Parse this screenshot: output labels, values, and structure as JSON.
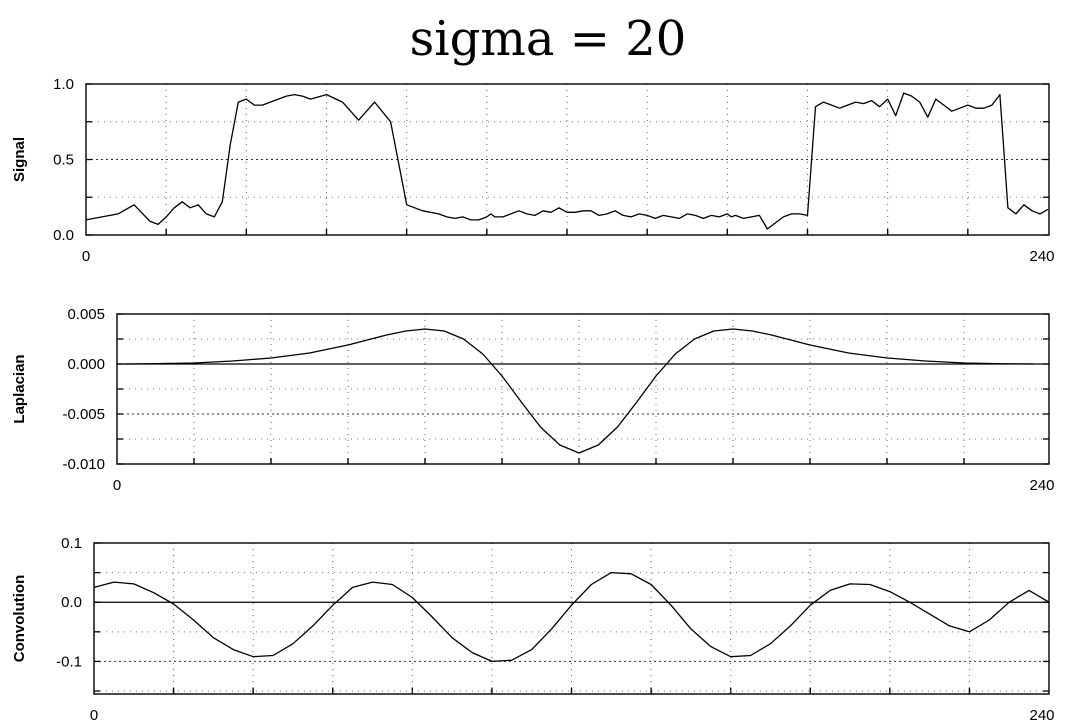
{
  "title": "sigma = 20",
  "chart_data": [
    {
      "type": "line",
      "ylabel": "Signal",
      "xlabel": "",
      "xlim": [
        0,
        240
      ],
      "ylim": [
        0,
        1
      ],
      "x_tick_labels": [
        "0",
        "240"
      ],
      "y_tick_labels": [
        "1.0",
        "0.5",
        "0.0"
      ],
      "y_ticks": [
        1.0,
        0.5,
        0.0
      ],
      "grid": true,
      "series": [
        {
          "x": [
            0,
            4,
            8,
            12,
            16,
            18,
            20,
            22,
            24,
            26,
            28,
            30,
            32,
            34,
            36,
            38,
            40,
            42,
            44,
            46,
            48,
            50,
            52,
            54,
            56,
            60,
            64,
            68,
            72,
            76,
            80,
            84,
            88,
            90,
            92,
            94,
            96,
            97,
            98,
            100,
            101,
            102,
            104,
            106,
            108,
            110,
            112,
            114,
            116,
            118,
            120,
            122,
            124,
            126,
            128,
            130,
            132,
            134,
            136,
            138,
            140,
            142,
            144,
            146,
            148,
            150,
            152,
            154,
            156,
            158,
            160,
            161,
            162,
            164,
            166,
            168,
            170,
            172,
            174,
            176,
            178,
            180,
            182,
            184,
            186,
            188,
            190,
            192,
            194,
            196,
            198,
            200,
            202,
            204,
            206,
            208,
            210,
            212,
            214,
            216,
            218,
            220,
            222,
            224,
            226,
            228,
            230,
            232,
            234,
            236,
            238,
            240
          ],
          "y": [
            0.1,
            0.12,
            0.14,
            0.2,
            0.09,
            0.07,
            0.12,
            0.18,
            0.22,
            0.18,
            0.2,
            0.14,
            0.12,
            0.22,
            0.6,
            0.88,
            0.9,
            0.86,
            0.86,
            0.88,
            0.9,
            0.92,
            0.93,
            0.92,
            0.9,
            0.93,
            0.88,
            0.76,
            0.88,
            0.75,
            0.2,
            0.16,
            0.14,
            0.12,
            0.11,
            0.12,
            0.1,
            0.1,
            0.1,
            0.12,
            0.14,
            0.12,
            0.12,
            0.14,
            0.16,
            0.14,
            0.13,
            0.16,
            0.15,
            0.18,
            0.15,
            0.15,
            0.16,
            0.16,
            0.13,
            0.14,
            0.16,
            0.13,
            0.12,
            0.14,
            0.13,
            0.11,
            0.13,
            0.12,
            0.11,
            0.14,
            0.13,
            0.11,
            0.13,
            0.12,
            0.14,
            0.12,
            0.13,
            0.11,
            0.12,
            0.13,
            0.04,
            0.08,
            0.12,
            0.14,
            0.14,
            0.13,
            0.85,
            0.88,
            0.86,
            0.84,
            0.86,
            0.88,
            0.87,
            0.89,
            0.85,
            0.9,
            0.79,
            0.94,
            0.92,
            0.88,
            0.78,
            0.9,
            0.86,
            0.82,
            0.84,
            0.86,
            0.84,
            0.84,
            0.86,
            0.93,
            0.18,
            0.14,
            0.2,
            0.16,
            0.14,
            0.17
          ]
        }
      ]
    },
    {
      "type": "line",
      "ylabel": "Laplacian",
      "xlabel": "",
      "xlim": [
        0,
        240
      ],
      "ylim": [
        -0.01,
        0.005
      ],
      "x_tick_labels": [
        "0",
        "240"
      ],
      "y_tick_labels": [
        "0.005",
        "0.000",
        "-0.005",
        "-0.010"
      ],
      "y_ticks": [
        0.005,
        0.0,
        -0.005,
        -0.01
      ],
      "grid": true,
      "series": [
        {
          "x": [
            2,
            10,
            20,
            30,
            40,
            50,
            60,
            70,
            75,
            80,
            85,
            90,
            95,
            100,
            105,
            110,
            115,
            120,
            125,
            130,
            135,
            140,
            145,
            150,
            155,
            160,
            165,
            170,
            175,
            180,
            190,
            200,
            210,
            220,
            230,
            238
          ],
          "y": [
            0.0,
            3e-05,
            0.0001,
            0.0003,
            0.0006,
            0.0011,
            0.0019,
            0.0029,
            0.0033,
            0.0035,
            0.0033,
            0.0025,
            0.001,
            -0.0012,
            -0.0038,
            -0.0063,
            -0.0081,
            -0.0089,
            -0.0081,
            -0.0063,
            -0.0038,
            -0.0012,
            0.001,
            0.0025,
            0.0033,
            0.0035,
            0.0033,
            0.0029,
            0.0024,
            0.0019,
            0.0011,
            0.0006,
            0.0003,
            0.0001,
            2e-05,
            0.0
          ]
        }
      ]
    },
    {
      "type": "line",
      "ylabel": "Convolution",
      "xlabel": "",
      "xlim": [
        0,
        240
      ],
      "ylim": [
        -0.155,
        0.1
      ],
      "x_tick_labels": [
        "0",
        "240"
      ],
      "y_tick_labels": [
        "0.1",
        "0.0",
        "-0.1"
      ],
      "y_ticks": [
        0.1,
        0.0,
        -0.1
      ],
      "grid": true,
      "series": [
        {
          "x": [
            0,
            5,
            10,
            15,
            20,
            25,
            30,
            35,
            40,
            45,
            50,
            55,
            60,
            65,
            70,
            75,
            80,
            85,
            90,
            95,
            100,
            105,
            110,
            115,
            120,
            125,
            130,
            135,
            140,
            145,
            150,
            155,
            160,
            165,
            170,
            175,
            180,
            185,
            190,
            195,
            200,
            205,
            210,
            215,
            220,
            225,
            230,
            235,
            240
          ],
          "y": [
            0.025,
            0.034,
            0.031,
            0.016,
            -0.003,
            -0.03,
            -0.06,
            -0.08,
            -0.092,
            -0.09,
            -0.07,
            -0.04,
            -0.005,
            0.025,
            0.034,
            0.03,
            0.008,
            -0.025,
            -0.06,
            -0.085,
            -0.1,
            -0.098,
            -0.08,
            -0.045,
            -0.005,
            0.03,
            0.05,
            0.048,
            0.03,
            -0.005,
            -0.045,
            -0.075,
            -0.092,
            -0.09,
            -0.07,
            -0.04,
            -0.005,
            0.02,
            0.031,
            0.03,
            0.018,
            0.0,
            -0.02,
            -0.04,
            -0.05,
            -0.03,
            0.0,
            0.02,
            0.0
          ]
        }
      ]
    }
  ]
}
